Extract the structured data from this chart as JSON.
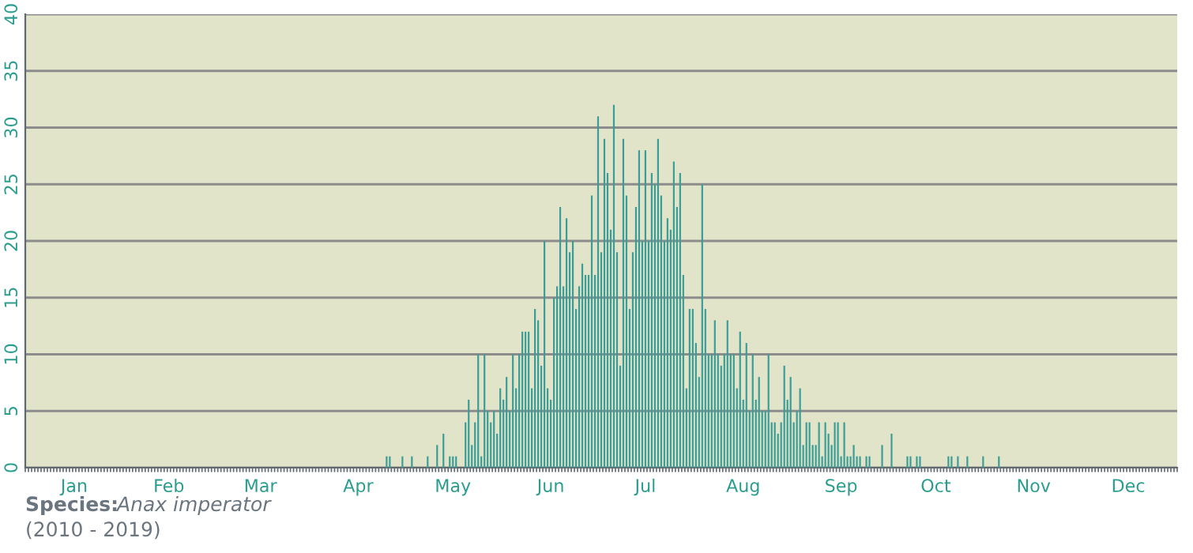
{
  "chart_data": {
    "type": "bar",
    "categories": [
      null,
      null,
      null,
      null,
      null,
      null,
      null,
      null,
      null,
      null,
      null,
      null,
      null,
      null,
      null,
      "Jan",
      null,
      null,
      null,
      null,
      null,
      null,
      null,
      null,
      null,
      null,
      null,
      null,
      null,
      null,
      null,
      null,
      null,
      null,
      null,
      null,
      null,
      null,
      null,
      null,
      null,
      null,
      null,
      null,
      null,
      "Feb",
      null,
      null,
      null,
      null,
      null,
      null,
      null,
      null,
      null,
      null,
      null,
      null,
      null,
      null,
      null,
      null,
      null,
      null,
      null,
      null,
      null,
      null,
      null,
      null,
      null,
      null,
      null,
      null,
      "Mar",
      null,
      null,
      null,
      null,
      null,
      null,
      null,
      null,
      null,
      null,
      null,
      null,
      null,
      null,
      null,
      null,
      null,
      null,
      null,
      null,
      null,
      null,
      null,
      null,
      null,
      null,
      null,
      null,
      null,
      null,
      "Apr",
      null,
      null,
      null,
      null,
      null,
      null,
      null,
      null,
      null,
      null,
      null,
      null,
      null,
      null,
      null,
      null,
      null,
      null,
      null,
      null,
      null,
      null,
      null,
      null,
      null,
      null,
      null,
      null,
      null,
      "May",
      null,
      null,
      null,
      null,
      null,
      null,
      null,
      null,
      null,
      null,
      null,
      null,
      null,
      null,
      null,
      null,
      null,
      null,
      null,
      null,
      null,
      null,
      null,
      null,
      null,
      null,
      null,
      null,
      null,
      null,
      "Jun",
      null,
      null,
      null,
      null,
      null,
      null,
      null,
      null,
      null,
      null,
      null,
      null,
      null,
      null,
      null,
      null,
      null,
      null,
      null,
      null,
      null,
      null,
      null,
      null,
      null,
      null,
      null,
      null,
      null,
      "Jul",
      null,
      null,
      null,
      null,
      null,
      null,
      null,
      null,
      null,
      null,
      null,
      null,
      null,
      null,
      null,
      null,
      null,
      null,
      null,
      null,
      null,
      null,
      null,
      null,
      null,
      null,
      null,
      null,
      null,
      null,
      "Aug",
      null,
      null,
      null,
      null,
      null,
      null,
      null,
      null,
      null,
      null,
      null,
      null,
      null,
      null,
      null,
      null,
      null,
      null,
      null,
      null,
      null,
      null,
      null,
      null,
      null,
      null,
      null,
      null,
      null,
      null,
      "Sep",
      null,
      null,
      null,
      null,
      null,
      null,
      null,
      null,
      null,
      null,
      null,
      null,
      null,
      null,
      null,
      null,
      null,
      null,
      null,
      null,
      null,
      null,
      null,
      null,
      null,
      null,
      null,
      null,
      null,
      "Oct",
      null,
      null,
      null,
      null,
      null,
      null,
      null,
      null,
      null,
      null,
      null,
      null,
      null,
      null,
      null,
      null,
      null,
      null,
      null,
      null,
      null,
      null,
      null,
      null,
      null,
      null,
      null,
      null,
      null,
      null,
      "Nov",
      null,
      null,
      null,
      null,
      null,
      null,
      null,
      null,
      null,
      null,
      null,
      null,
      null,
      null,
      null,
      null,
      null,
      null,
      null,
      null,
      null,
      null,
      null,
      null,
      null,
      null,
      null,
      null,
      null,
      "Dec",
      null,
      null,
      null,
      null,
      null,
      null,
      null,
      null,
      null,
      null,
      null,
      null,
      null,
      null,
      null
    ],
    "values": [
      0,
      0,
      0,
      0,
      0,
      0,
      0,
      0,
      0,
      0,
      0,
      0,
      0,
      0,
      0,
      0,
      0,
      0,
      0,
      0,
      0,
      0,
      0,
      0,
      0,
      0,
      0,
      0,
      0,
      0,
      0,
      0,
      0,
      0,
      0,
      0,
      0,
      0,
      0,
      0,
      0,
      0,
      0,
      0,
      0,
      0,
      0,
      0,
      0,
      0,
      0,
      0,
      0,
      0,
      0,
      0,
      0,
      0,
      0,
      0,
      0,
      0,
      0,
      0,
      0,
      0,
      0,
      0,
      0,
      0,
      0,
      0,
      0,
      0,
      0,
      0,
      0,
      0,
      0,
      0,
      0,
      0,
      0,
      0,
      0,
      0,
      0,
      0,
      0,
      0,
      0,
      0,
      0,
      0,
      0,
      0,
      0,
      0,
      0,
      0,
      0,
      0,
      0,
      0,
      0,
      0,
      0,
      0,
      0,
      0,
      0,
      0,
      0,
      0,
      1,
      1,
      0,
      0,
      0,
      1,
      0,
      0,
      1,
      0,
      0,
      0,
      0,
      1,
      0,
      0,
      2,
      0,
      3,
      0,
      1,
      1,
      1,
      0,
      0,
      4,
      6,
      2,
      4,
      10,
      1,
      10,
      5,
      4,
      5,
      3,
      7,
      6,
      8,
      5,
      10,
      7,
      10,
      12,
      12,
      12,
      7,
      14,
      13,
      9,
      20,
      7,
      6,
      15,
      16,
      23,
      16,
      22,
      19,
      20,
      14,
      16,
      18,
      17,
      17,
      24,
      17,
      31,
      19,
      29,
      26,
      21,
      32,
      19,
      9,
      29,
      24,
      14,
      19,
      23,
      28,
      20,
      28,
      20,
      26,
      25,
      29,
      24,
      20,
      22,
      21,
      27,
      23,
      26,
      17,
      7,
      14,
      14,
      11,
      8,
      25,
      14,
      10,
      10,
      13,
      10,
      9,
      10,
      13,
      10,
      10,
      7,
      12,
      6,
      11,
      5,
      10,
      6,
      8,
      5,
      5,
      10,
      4,
      4,
      3,
      4,
      9,
      6,
      8,
      4,
      5,
      7,
      2,
      4,
      4,
      2,
      2,
      4,
      1,
      4,
      3,
      2,
      4,
      4,
      1,
      4,
      1,
      1,
      2,
      1,
      1,
      0,
      1,
      1,
      0,
      0,
      0,
      2,
      0,
      0,
      3,
      0,
      0,
      0,
      0,
      1,
      1,
      0,
      1,
      1,
      0,
      0,
      0,
      0,
      0,
      0,
      0,
      0,
      1,
      1,
      0,
      1,
      0,
      0,
      1,
      0,
      0,
      0,
      0,
      1,
      0,
      0,
      0,
      0,
      1,
      0,
      0,
      0,
      0,
      0,
      0,
      0,
      0,
      0,
      0,
      0,
      0,
      0,
      0,
      0,
      0,
      0,
      0,
      0,
      0,
      0,
      0,
      0,
      0,
      0,
      0,
      0,
      0,
      0,
      0,
      0,
      0,
      0,
      0,
      0,
      0,
      0,
      0,
      0,
      0,
      0,
      0,
      0,
      0,
      0,
      0,
      0,
      0,
      0,
      0,
      0,
      0,
      0,
      0,
      0,
      0
    ],
    "color": "#3c9d96",
    "ylim": [
      0,
      40
    ],
    "yticks": [
      0,
      5,
      10,
      15,
      20,
      25,
      30,
      35,
      40
    ],
    "grid": "y",
    "annotations": [
      "Species:",
      "Anax imperator",
      "(2010 - 2019)"
    ]
  }
}
